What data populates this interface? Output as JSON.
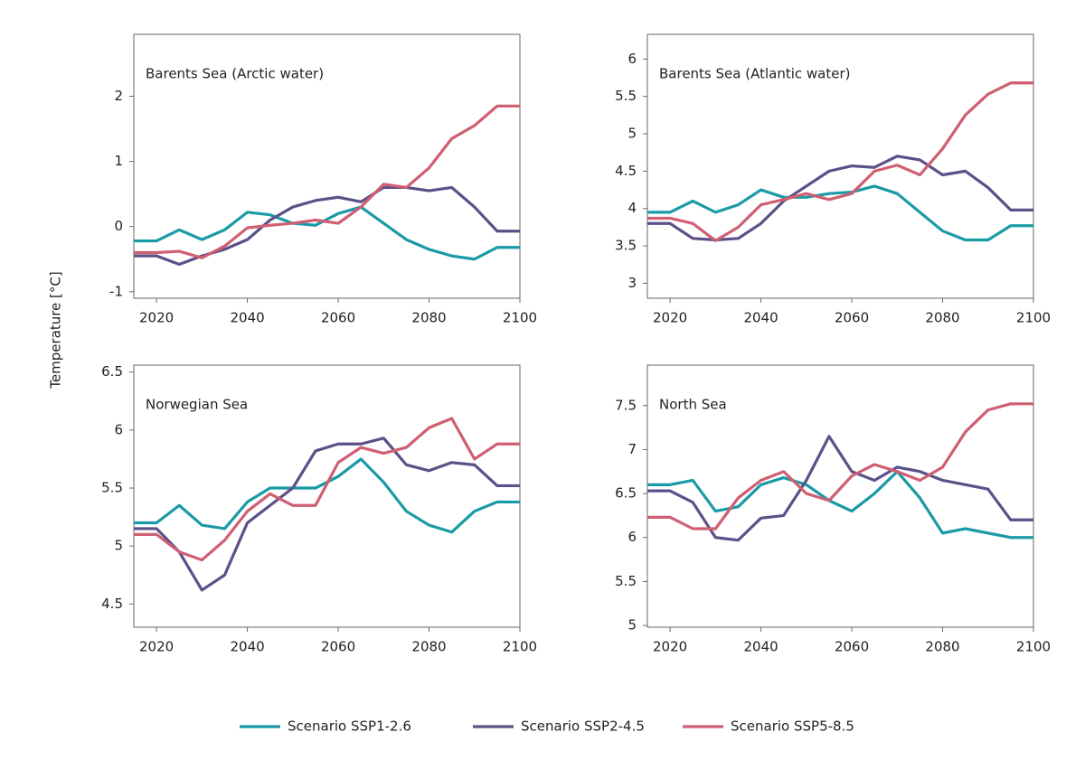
{
  "ylabel": "Temperature [°C]",
  "chart_data": [
    {
      "type": "line",
      "title": "Barents Sea (Arctic water)",
      "x": [
        2015,
        2020,
        2025,
        2030,
        2035,
        2040,
        2045,
        2050,
        2055,
        2060,
        2065,
        2070,
        2075,
        2080,
        2085,
        2090,
        2095,
        2100
      ],
      "xlim": [
        2015,
        2100
      ],
      "xticks": [
        2020,
        2040,
        2060,
        2080,
        2100
      ],
      "ylim": [
        -1.1,
        2.95
      ],
      "yticks": [
        -1,
        0,
        1,
        2
      ],
      "series": [
        {
          "name": "Scenario SSP1-2.6",
          "color": "#1a9aa6",
          "values": [
            -0.22,
            -0.22,
            -0.05,
            -0.2,
            -0.05,
            0.22,
            0.18,
            0.05,
            0.02,
            0.2,
            0.3,
            0.05,
            -0.2,
            -0.35,
            -0.45,
            -0.5,
            -0.32,
            -0.32
          ]
        },
        {
          "name": "Scenario SSP2-4.5",
          "color": "#5c5089",
          "values": [
            -0.45,
            -0.45,
            -0.58,
            -0.45,
            -0.35,
            -0.2,
            0.1,
            0.3,
            0.4,
            0.45,
            0.38,
            0.6,
            0.6,
            0.55,
            0.6,
            0.3,
            -0.07,
            -0.07
          ]
        },
        {
          "name": "Scenario SSP5-8.5",
          "color": "#cf5f72",
          "values": [
            -0.4,
            -0.4,
            -0.38,
            -0.48,
            -0.3,
            -0.02,
            0.02,
            0.05,
            0.1,
            0.05,
            0.3,
            0.65,
            0.6,
            0.9,
            1.35,
            1.55,
            1.85,
            1.85
          ]
        }
      ]
    },
    {
      "type": "line",
      "title": "Barents Sea (Atlantic water)",
      "x": [
        2015,
        2020,
        2025,
        2030,
        2035,
        2040,
        2045,
        2050,
        2055,
        2060,
        2065,
        2070,
        2075,
        2080,
        2085,
        2090,
        2095,
        2100
      ],
      "xlim": [
        2015,
        2100
      ],
      "xticks": [
        2020,
        2040,
        2060,
        2080,
        2100
      ],
      "ylim": [
        2.8,
        6.33
      ],
      "yticks": [
        3,
        3.5,
        4,
        4.5,
        5,
        5.5,
        6
      ],
      "series": [
        {
          "name": "Scenario SSP1-2.6",
          "color": "#1a9aa6",
          "values": [
            3.95,
            3.95,
            4.1,
            3.95,
            4.05,
            4.25,
            4.15,
            4.15,
            4.2,
            4.22,
            4.3,
            4.2,
            3.95,
            3.7,
            3.58,
            3.58,
            3.77,
            3.77
          ]
        },
        {
          "name": "Scenario SSP2-4.5",
          "color": "#5c5089",
          "values": [
            3.8,
            3.8,
            3.6,
            3.58,
            3.6,
            3.8,
            4.1,
            4.3,
            4.5,
            4.57,
            4.55,
            4.7,
            4.65,
            4.45,
            4.5,
            4.28,
            3.98,
            3.98
          ]
        },
        {
          "name": "Scenario SSP5-8.5",
          "color": "#cf5f72",
          "values": [
            3.87,
            3.87,
            3.8,
            3.57,
            3.75,
            4.05,
            4.12,
            4.2,
            4.12,
            4.2,
            4.5,
            4.58,
            4.45,
            4.8,
            5.25,
            5.53,
            5.68,
            5.68
          ]
        }
      ]
    },
    {
      "type": "line",
      "title": "Norwegian Sea",
      "x": [
        2015,
        2020,
        2025,
        2030,
        2035,
        2040,
        2045,
        2050,
        2055,
        2060,
        2065,
        2070,
        2075,
        2080,
        2085,
        2090,
        2095,
        2100
      ],
      "xlim": [
        2015,
        2100
      ],
      "xticks": [
        2020,
        2040,
        2060,
        2080,
        2100
      ],
      "ylim": [
        4.3,
        6.56
      ],
      "yticks": [
        4.5,
        5,
        5.5,
        6,
        6.5
      ],
      "series": [
        {
          "name": "Scenario SSP1-2.6",
          "color": "#1a9aa6",
          "values": [
            5.2,
            5.2,
            5.35,
            5.18,
            5.15,
            5.38,
            5.5,
            5.5,
            5.5,
            5.6,
            5.75,
            5.55,
            5.3,
            5.18,
            5.12,
            5.3,
            5.38,
            5.38
          ]
        },
        {
          "name": "Scenario SSP2-4.5",
          "color": "#5c5089",
          "values": [
            5.15,
            5.15,
            4.95,
            4.62,
            4.75,
            5.2,
            5.35,
            5.5,
            5.82,
            5.88,
            5.88,
            5.93,
            5.7,
            5.65,
            5.72,
            5.7,
            5.52,
            5.52
          ]
        },
        {
          "name": "Scenario SSP5-8.5",
          "color": "#cf5f72",
          "values": [
            5.1,
            5.1,
            4.95,
            4.88,
            5.05,
            5.3,
            5.45,
            5.35,
            5.35,
            5.72,
            5.85,
            5.8,
            5.85,
            6.02,
            6.1,
            5.75,
            5.88,
            5.88
          ]
        }
      ]
    },
    {
      "type": "line",
      "title": "North Sea",
      "x": [
        2015,
        2020,
        2025,
        2030,
        2035,
        2040,
        2045,
        2050,
        2055,
        2060,
        2065,
        2070,
        2075,
        2080,
        2085,
        2090,
        2095,
        2100
      ],
      "xlim": [
        2015,
        2100
      ],
      "xticks": [
        2020,
        2040,
        2060,
        2080,
        2100
      ],
      "ylim": [
        4.98,
        7.96
      ],
      "yticks": [
        5,
        5.5,
        6,
        6.5,
        7,
        7.5
      ],
      "series": [
        {
          "name": "Scenario SSP1-2.6",
          "color": "#1a9aa6",
          "values": [
            6.6,
            6.6,
            6.65,
            6.3,
            6.35,
            6.6,
            6.68,
            6.6,
            6.42,
            6.3,
            6.5,
            6.75,
            6.45,
            6.05,
            6.1,
            6.05,
            6.0,
            6.0
          ]
        },
        {
          "name": "Scenario SSP2-4.5",
          "color": "#5c5089",
          "values": [
            6.53,
            6.53,
            6.4,
            6.0,
            5.97,
            6.22,
            6.25,
            6.65,
            7.15,
            6.75,
            6.65,
            6.8,
            6.75,
            6.65,
            6.6,
            6.55,
            6.2,
            6.2
          ]
        },
        {
          "name": "Scenario SSP5-8.5",
          "color": "#cf5f72",
          "values": [
            6.23,
            6.23,
            6.1,
            6.1,
            6.45,
            6.65,
            6.75,
            6.5,
            6.42,
            6.7,
            6.83,
            6.75,
            6.65,
            6.8,
            7.2,
            7.45,
            7.52,
            7.52
          ]
        }
      ]
    }
  ]
}
